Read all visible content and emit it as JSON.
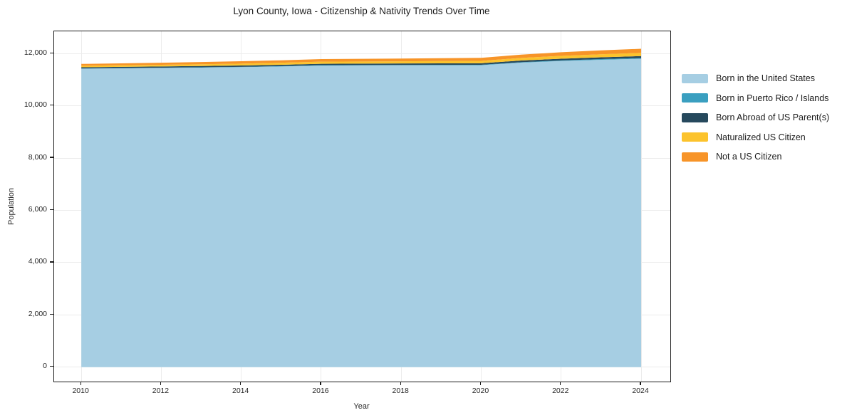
{
  "chart_data": {
    "type": "area",
    "stacked": true,
    "title": "Lyon County, Iowa - Citizenship & Nativity Trends Over Time",
    "xlabel": "Year",
    "ylabel": "Population",
    "grid": true,
    "legend_position": "right-outside",
    "xlim": [
      2009.32,
      2024.73
    ],
    "ylim": [
      -550,
      12850
    ],
    "x": [
      2010,
      2011,
      2012,
      2013,
      2014,
      2015,
      2016,
      2017,
      2018,
      2019,
      2020,
      2021,
      2022,
      2023,
      2024
    ],
    "xtick_values": [
      2010,
      2012,
      2014,
      2016,
      2018,
      2020,
      2022,
      2024
    ],
    "xtick_labels": [
      "2010",
      "2012",
      "2014",
      "2016",
      "2018",
      "2020",
      "2022",
      "2024"
    ],
    "ytick_values": [
      0,
      2000,
      4000,
      6000,
      8000,
      10000,
      12000
    ],
    "ytick_labels": [
      "0",
      "2,000",
      "4,000",
      "6,000",
      "8,000",
      "10,000",
      "12,000"
    ],
    "series": [
      {
        "name": "Born in the United States",
        "color": "#a6cee3",
        "values": [
          11420,
          11435,
          11448,
          11462,
          11480,
          11505,
          11540,
          11545,
          11548,
          11550,
          11552,
          11650,
          11715,
          11762,
          11800
        ]
      },
      {
        "name": "Born in Puerto Rico / Islands",
        "color": "#3a9fc0",
        "values": [
          10,
          10,
          11,
          12,
          13,
          14,
          15,
          15,
          16,
          17,
          18,
          20,
          22,
          25,
          28
        ]
      },
      {
        "name": "Born Abroad of US Parent(s)",
        "color": "#26495d",
        "values": [
          45,
          46,
          47,
          49,
          50,
          52,
          54,
          55,
          56,
          57,
          58,
          62,
          66,
          70,
          75
        ]
      },
      {
        "name": "Naturalized US Citizen",
        "color": "#fcc32d",
        "values": [
          58,
          61,
          64,
          68,
          72,
          76,
          80,
          82,
          84,
          88,
          92,
          100,
          108,
          115,
          122
        ]
      },
      {
        "name": "Not a US Citizen",
        "color": "#f79428",
        "values": [
          70,
          74,
          79,
          85,
          90,
          94,
          98,
          102,
          105,
          110,
          115,
          126,
          138,
          148,
          158
        ]
      }
    ]
  }
}
